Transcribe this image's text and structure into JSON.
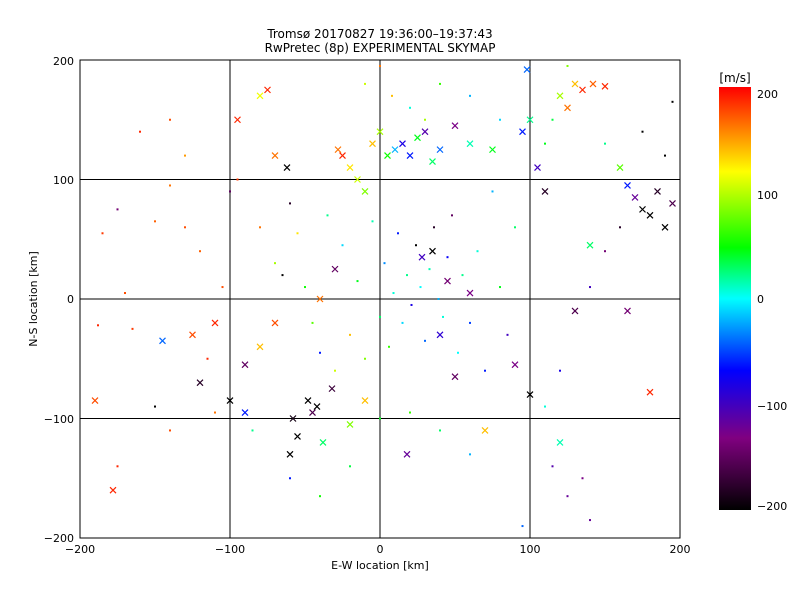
{
  "chart_data": {
    "type": "scatter",
    "title": "Tromsø 20170827 19:36:00–19:37:43",
    "subtitle": "RwPretec (8p) EXPERIMENTAL SKYMAP",
    "xlabel": "E-W location [km]",
    "ylabel": "N-S location [km]",
    "xlim": [
      -200,
      200
    ],
    "ylim": [
      -200,
      200
    ],
    "x_ticks": [
      "−200",
      "−100",
      "0",
      "100",
      "200"
    ],
    "y_ticks": [
      "−200",
      "−100",
      "0",
      "100",
      "200"
    ],
    "grid": true,
    "markers": [
      "dot",
      "x"
    ],
    "colorbar": {
      "label": "[m/s]",
      "range": [
        -200,
        200
      ],
      "ticks": [
        "200",
        "100",
        "0",
        "−100",
        "−200"
      ],
      "colors": [
        "#000000",
        "#800080",
        "#0000ff",
        "#00ffff",
        "#00ff00",
        "#ffff00",
        "#ff0000"
      ]
    },
    "points": [
      {
        "x": -190,
        "y": -85,
        "v": 180,
        "m": "x"
      },
      {
        "x": -178,
        "y": -160,
        "v": 190,
        "m": "x"
      },
      {
        "x": -185,
        "y": 55,
        "v": 185,
        "m": "dot"
      },
      {
        "x": -160,
        "y": 140,
        "v": 190,
        "m": "dot"
      },
      {
        "x": -150,
        "y": 65,
        "v": 175,
        "m": "dot"
      },
      {
        "x": -140,
        "y": 150,
        "v": 180,
        "m": "dot"
      },
      {
        "x": -125,
        "y": -30,
        "v": 180,
        "m": "x"
      },
      {
        "x": -110,
        "y": -20,
        "v": 190,
        "m": "x"
      },
      {
        "x": -95,
        "y": 150,
        "v": 190,
        "m": "x"
      },
      {
        "x": -90,
        "y": -55,
        "v": -150,
        "m": "x"
      },
      {
        "x": -80,
        "y": 170,
        "v": 130,
        "m": "x"
      },
      {
        "x": -75,
        "y": 175,
        "v": 190,
        "m": "x"
      },
      {
        "x": -70,
        "y": 120,
        "v": 170,
        "m": "x"
      },
      {
        "x": -62,
        "y": 110,
        "v": -200,
        "m": "x"
      },
      {
        "x": -58,
        "y": -100,
        "v": -190,
        "m": "x"
      },
      {
        "x": -55,
        "y": -115,
        "v": -200,
        "m": "x"
      },
      {
        "x": -48,
        "y": -85,
        "v": -200,
        "m": "x"
      },
      {
        "x": -45,
        "y": -95,
        "v": -160,
        "m": "x"
      },
      {
        "x": -42,
        "y": -90,
        "v": -200,
        "m": "x"
      },
      {
        "x": -38,
        "y": -120,
        "v": 40,
        "m": "x"
      },
      {
        "x": -32,
        "y": -75,
        "v": -170,
        "m": "x"
      },
      {
        "x": -28,
        "y": 125,
        "v": 170,
        "m": "x"
      },
      {
        "x": -25,
        "y": 120,
        "v": 190,
        "m": "x"
      },
      {
        "x": -20,
        "y": 110,
        "v": 140,
        "m": "x"
      },
      {
        "x": -15,
        "y": 100,
        "v": 120,
        "m": "x"
      },
      {
        "x": -10,
        "y": 90,
        "v": 100,
        "m": "x"
      },
      {
        "x": -5,
        "y": 130,
        "v": 150,
        "m": "x"
      },
      {
        "x": 0,
        "y": 140,
        "v": 110,
        "m": "x"
      },
      {
        "x": 5,
        "y": 120,
        "v": 70,
        "m": "x"
      },
      {
        "x": 10,
        "y": 125,
        "v": -20,
        "m": "x"
      },
      {
        "x": 15,
        "y": 130,
        "v": -80,
        "m": "x"
      },
      {
        "x": 20,
        "y": 120,
        "v": -60,
        "m": "x"
      },
      {
        "x": 25,
        "y": 135,
        "v": 60,
        "m": "x"
      },
      {
        "x": 30,
        "y": 140,
        "v": -110,
        "m": "x"
      },
      {
        "x": 35,
        "y": 115,
        "v": 40,
        "m": "x"
      },
      {
        "x": 40,
        "y": 125,
        "v": -40,
        "m": "x"
      },
      {
        "x": 50,
        "y": 145,
        "v": -130,
        "m": "x"
      },
      {
        "x": 60,
        "y": 130,
        "v": 20,
        "m": "x"
      },
      {
        "x": 75,
        "y": 125,
        "v": 60,
        "m": "x"
      },
      {
        "x": 95,
        "y": 140,
        "v": -60,
        "m": "x"
      },
      {
        "x": 98,
        "y": 192,
        "v": -40,
        "m": "x"
      },
      {
        "x": 100,
        "y": 150,
        "v": 30,
        "m": "x"
      },
      {
        "x": 105,
        "y": 110,
        "v": -100,
        "m": "x"
      },
      {
        "x": 110,
        "y": 90,
        "v": -180,
        "m": "x"
      },
      {
        "x": 120,
        "y": 170,
        "v": 110,
        "m": "x"
      },
      {
        "x": 125,
        "y": 160,
        "v": 170,
        "m": "x"
      },
      {
        "x": 130,
        "y": 180,
        "v": 150,
        "m": "x"
      },
      {
        "x": 135,
        "y": 175,
        "v": 190,
        "m": "x"
      },
      {
        "x": 142,
        "y": 180,
        "v": 175,
        "m": "x"
      },
      {
        "x": 150,
        "y": 178,
        "v": 190,
        "m": "x"
      },
      {
        "x": 160,
        "y": 110,
        "v": 90,
        "m": "x"
      },
      {
        "x": 165,
        "y": 95,
        "v": -60,
        "m": "x"
      },
      {
        "x": 170,
        "y": 85,
        "v": -120,
        "m": "x"
      },
      {
        "x": 175,
        "y": 75,
        "v": -200,
        "m": "x"
      },
      {
        "x": 180,
        "y": 70,
        "v": -200,
        "m": "x"
      },
      {
        "x": 185,
        "y": 90,
        "v": -180,
        "m": "x"
      },
      {
        "x": 190,
        "y": 60,
        "v": -200,
        "m": "x"
      },
      {
        "x": 195,
        "y": 80,
        "v": -160,
        "m": "x"
      },
      {
        "x": 140,
        "y": 45,
        "v": 40,
        "m": "x"
      },
      {
        "x": 130,
        "y": -10,
        "v": -160,
        "m": "x"
      },
      {
        "x": 165,
        "y": -10,
        "v": -140,
        "m": "x"
      },
      {
        "x": 180,
        "y": -78,
        "v": 190,
        "m": "x"
      },
      {
        "x": 120,
        "y": -120,
        "v": 20,
        "m": "x"
      },
      {
        "x": 100,
        "y": -80,
        "v": -200,
        "m": "x"
      },
      {
        "x": 45,
        "y": 15,
        "v": -140,
        "m": "x"
      },
      {
        "x": 35,
        "y": 40,
        "v": -200,
        "m": "x"
      },
      {
        "x": 28,
        "y": 35,
        "v": -100,
        "m": "x"
      },
      {
        "x": 40,
        "y": -30,
        "v": -90,
        "m": "x"
      },
      {
        "x": 50,
        "y": -65,
        "v": -150,
        "m": "x"
      },
      {
        "x": 70,
        "y": -110,
        "v": 150,
        "m": "x"
      },
      {
        "x": 18,
        "y": -130,
        "v": -120,
        "m": "x"
      },
      {
        "x": -10,
        "y": -85,
        "v": 150,
        "m": "x"
      },
      {
        "x": -20,
        "y": -105,
        "v": 100,
        "m": "x"
      },
      {
        "x": -60,
        "y": -130,
        "v": -200,
        "m": "x"
      },
      {
        "x": -70,
        "y": -20,
        "v": 180,
        "m": "x"
      },
      {
        "x": -80,
        "y": -40,
        "v": 150,
        "m": "x"
      },
      {
        "x": -90,
        "y": -95,
        "v": -60,
        "m": "x"
      },
      {
        "x": -100,
        "y": -85,
        "v": -200,
        "m": "x"
      },
      {
        "x": -145,
        "y": -35,
        "v": -40,
        "m": "x"
      },
      {
        "x": -120,
        "y": -70,
        "v": -180,
        "m": "x"
      },
      {
        "x": -30,
        "y": 25,
        "v": -150,
        "m": "x"
      },
      {
        "x": -40,
        "y": 0,
        "v": 170,
        "m": "x"
      },
      {
        "x": 60,
        "y": 5,
        "v": -130,
        "m": "x"
      },
      {
        "x": 90,
        "y": -55,
        "v": -130,
        "m": "x"
      },
      {
        "x": -188,
        "y": -22,
        "v": 190,
        "m": "dot"
      },
      {
        "x": -165,
        "y": -25,
        "v": 185,
        "m": "dot"
      },
      {
        "x": -150,
        "y": -90,
        "v": -200,
        "m": "dot"
      },
      {
        "x": -140,
        "y": -110,
        "v": 180,
        "m": "dot"
      },
      {
        "x": -130,
        "y": 60,
        "v": 180,
        "m": "dot"
      },
      {
        "x": -130,
        "y": 120,
        "v": 160,
        "m": "dot"
      },
      {
        "x": -120,
        "y": 40,
        "v": 175,
        "m": "dot"
      },
      {
        "x": -115,
        "y": -50,
        "v": 190,
        "m": "dot"
      },
      {
        "x": -105,
        "y": 10,
        "v": 180,
        "m": "dot"
      },
      {
        "x": -100,
        "y": 90,
        "v": -150,
        "m": "dot"
      },
      {
        "x": -95,
        "y": 100,
        "v": 185,
        "m": "dot"
      },
      {
        "x": -80,
        "y": 60,
        "v": 170,
        "m": "dot"
      },
      {
        "x": -70,
        "y": 30,
        "v": 110,
        "m": "dot"
      },
      {
        "x": -65,
        "y": 20,
        "v": -200,
        "m": "dot"
      },
      {
        "x": -60,
        "y": 80,
        "v": -180,
        "m": "dot"
      },
      {
        "x": -55,
        "y": 55,
        "v": 140,
        "m": "dot"
      },
      {
        "x": -50,
        "y": 10,
        "v": 70,
        "m": "dot"
      },
      {
        "x": -45,
        "y": -20,
        "v": 90,
        "m": "dot"
      },
      {
        "x": -40,
        "y": -45,
        "v": -60,
        "m": "dot"
      },
      {
        "x": -35,
        "y": 70,
        "v": 30,
        "m": "dot"
      },
      {
        "x": -30,
        "y": -60,
        "v": 120,
        "m": "dot"
      },
      {
        "x": -25,
        "y": 45,
        "v": -10,
        "m": "dot"
      },
      {
        "x": -20,
        "y": -30,
        "v": 150,
        "m": "dot"
      },
      {
        "x": -15,
        "y": 15,
        "v": 60,
        "m": "dot"
      },
      {
        "x": -10,
        "y": -50,
        "v": 100,
        "m": "dot"
      },
      {
        "x": -5,
        "y": 65,
        "v": 20,
        "m": "dot"
      },
      {
        "x": 0,
        "y": -15,
        "v": 40,
        "m": "dot"
      },
      {
        "x": 3,
        "y": 30,
        "v": -30,
        "m": "dot"
      },
      {
        "x": 6,
        "y": -40,
        "v": 80,
        "m": "dot"
      },
      {
        "x": 9,
        "y": 5,
        "v": 10,
        "m": "dot"
      },
      {
        "x": 12,
        "y": 55,
        "v": -60,
        "m": "dot"
      },
      {
        "x": 15,
        "y": -20,
        "v": -10,
        "m": "dot"
      },
      {
        "x": 18,
        "y": 20,
        "v": 30,
        "m": "dot"
      },
      {
        "x": 21,
        "y": -5,
        "v": -80,
        "m": "dot"
      },
      {
        "x": 24,
        "y": 45,
        "v": -200,
        "m": "dot"
      },
      {
        "x": 27,
        "y": 10,
        "v": 0,
        "m": "dot"
      },
      {
        "x": 30,
        "y": -35,
        "v": -40,
        "m": "dot"
      },
      {
        "x": 33,
        "y": 25,
        "v": 20,
        "m": "dot"
      },
      {
        "x": 36,
        "y": 60,
        "v": -180,
        "m": "dot"
      },
      {
        "x": 39,
        "y": 0,
        "v": -20,
        "m": "dot"
      },
      {
        "x": 42,
        "y": -15,
        "v": 10,
        "m": "dot"
      },
      {
        "x": 45,
        "y": 35,
        "v": -70,
        "m": "dot"
      },
      {
        "x": 48,
        "y": 70,
        "v": -150,
        "m": "dot"
      },
      {
        "x": 52,
        "y": -45,
        "v": 0,
        "m": "dot"
      },
      {
        "x": 55,
        "y": 20,
        "v": 30,
        "m": "dot"
      },
      {
        "x": 60,
        "y": -20,
        "v": -50,
        "m": "dot"
      },
      {
        "x": 65,
        "y": 40,
        "v": 10,
        "m": "dot"
      },
      {
        "x": 70,
        "y": -60,
        "v": -60,
        "m": "dot"
      },
      {
        "x": 75,
        "y": 90,
        "v": -20,
        "m": "dot"
      },
      {
        "x": 80,
        "y": 10,
        "v": 60,
        "m": "dot"
      },
      {
        "x": 85,
        "y": -30,
        "v": -100,
        "m": "dot"
      },
      {
        "x": 90,
        "y": 60,
        "v": 40,
        "m": "dot"
      },
      {
        "x": -10,
        "y": 180,
        "v": 120,
        "m": "dot"
      },
      {
        "x": 0,
        "y": 195,
        "v": 170,
        "m": "dot"
      },
      {
        "x": 8,
        "y": 170,
        "v": 150,
        "m": "dot"
      },
      {
        "x": 20,
        "y": 160,
        "v": 10,
        "m": "dot"
      },
      {
        "x": 30,
        "y": 150,
        "v": 110,
        "m": "dot"
      },
      {
        "x": 40,
        "y": 180,
        "v": 80,
        "m": "dot"
      },
      {
        "x": 60,
        "y": 170,
        "v": -20,
        "m": "dot"
      },
      {
        "x": 80,
        "y": 150,
        "v": -10,
        "m": "dot"
      },
      {
        "x": 110,
        "y": 130,
        "v": 60,
        "m": "dot"
      },
      {
        "x": 115,
        "y": 150,
        "v": 50,
        "m": "dot"
      },
      {
        "x": 125,
        "y": 195,
        "v": 100,
        "m": "dot"
      },
      {
        "x": 150,
        "y": 130,
        "v": 30,
        "m": "dot"
      },
      {
        "x": 175,
        "y": 140,
        "v": -200,
        "m": "dot"
      },
      {
        "x": 190,
        "y": 120,
        "v": -200,
        "m": "dot"
      },
      {
        "x": 195,
        "y": 165,
        "v": -200,
        "m": "dot"
      },
      {
        "x": 160,
        "y": 60,
        "v": -180,
        "m": "dot"
      },
      {
        "x": 150,
        "y": 40,
        "v": -140,
        "m": "dot"
      },
      {
        "x": 140,
        "y": 10,
        "v": -100,
        "m": "dot"
      },
      {
        "x": 120,
        "y": -60,
        "v": -80,
        "m": "dot"
      },
      {
        "x": 110,
        "y": -90,
        "v": 10,
        "m": "dot"
      },
      {
        "x": 115,
        "y": -140,
        "v": -110,
        "m": "dot"
      },
      {
        "x": 125,
        "y": -165,
        "v": -120,
        "m": "dot"
      },
      {
        "x": 135,
        "y": -150,
        "v": -130,
        "m": "dot"
      },
      {
        "x": 140,
        "y": -185,
        "v": -120,
        "m": "dot"
      },
      {
        "x": 95,
        "y": -190,
        "v": -40,
        "m": "dot"
      },
      {
        "x": 60,
        "y": -130,
        "v": -20,
        "m": "dot"
      },
      {
        "x": 40,
        "y": -110,
        "v": 40,
        "m": "dot"
      },
      {
        "x": 20,
        "y": -95,
        "v": 80,
        "m": "dot"
      },
      {
        "x": 0,
        "y": -100,
        "v": 60,
        "m": "dot"
      },
      {
        "x": -20,
        "y": -140,
        "v": 50,
        "m": "dot"
      },
      {
        "x": -40,
        "y": -165,
        "v": 70,
        "m": "dot"
      },
      {
        "x": -60,
        "y": -150,
        "v": -60,
        "m": "dot"
      },
      {
        "x": -85,
        "y": -110,
        "v": 30,
        "m": "dot"
      },
      {
        "x": -110,
        "y": -95,
        "v": 170,
        "m": "dot"
      },
      {
        "x": -175,
        "y": -140,
        "v": 190,
        "m": "dot"
      },
      {
        "x": -170,
        "y": 5,
        "v": 180,
        "m": "dot"
      },
      {
        "x": -175,
        "y": 75,
        "v": -140,
        "m": "dot"
      },
      {
        "x": -140,
        "y": 95,
        "v": 170,
        "m": "dot"
      }
    ]
  }
}
